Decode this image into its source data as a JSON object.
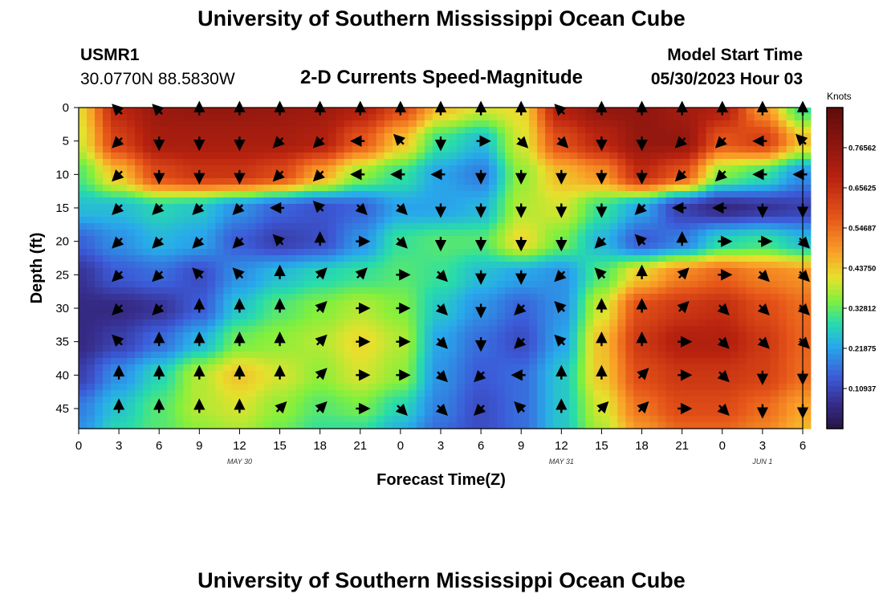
{
  "titles": {
    "top": "University of Southern Mississippi Ocean Cube",
    "bottom": "University of Southern Mississippi Ocean Cube"
  },
  "station": {
    "id": "USMR1",
    "coords": "30.0770N  88.5830W"
  },
  "model": {
    "label": "Model Start Time",
    "value": "05/30/2023 Hour 03"
  },
  "chart_data": {
    "type": "heatmap",
    "title": "2-D Currents Speed-Magnitude",
    "xlabel": "Forecast Time(Z)",
    "ylabel": "Depth (ft)",
    "x_ticks": [
      "0",
      "3",
      "6",
      "9",
      "12",
      "15",
      "18",
      "21",
      "0",
      "3",
      "6",
      "9",
      "12",
      "15",
      "18",
      "21",
      "0",
      "3",
      "6"
    ],
    "x_range_hours": [
      0,
      54
    ],
    "y_ticks": [
      "0",
      "5",
      "10",
      "15",
      "20",
      "25",
      "30",
      "35",
      "40",
      "45"
    ],
    "y_range_ft": [
      0,
      48
    ],
    "date_labels": [
      {
        "text": "MAY 30",
        "hour": 12
      },
      {
        "text": "MAY 31",
        "hour": 36
      },
      {
        "text": "JUN 1",
        "hour": 51
      }
    ],
    "colorbar": {
      "unit": "Knots",
      "range": [
        0,
        0.875
      ],
      "ticks": [
        "0.10937",
        "0.21875",
        "0.32812",
        "0.43750",
        "0.54687",
        "0.65625",
        "0.76562"
      ],
      "tick_values": [
        0.10937,
        0.21875,
        0.32812,
        0.4375,
        0.54687,
        0.65625,
        0.76562
      ]
    },
    "vector_hours": [
      3,
      6,
      9,
      12,
      15,
      18,
      21,
      24,
      27,
      30,
      33,
      36,
      39,
      42,
      45,
      48,
      51,
      54
    ],
    "vector_depths_ft": [
      0.5,
      5,
      10,
      15,
      20,
      25,
      30,
      35,
      40,
      45
    ],
    "speed_grid_depths_ft": [
      0,
      5,
      10,
      15,
      20,
      25,
      30,
      35,
      40,
      45,
      48
    ],
    "speed_grid": [
      [
        0.42,
        0.68,
        0.75,
        0.76,
        0.76,
        0.75,
        0.74,
        0.7,
        0.6,
        0.45,
        0.4,
        0.42,
        0.7,
        0.76,
        0.77,
        0.73,
        0.7,
        0.5,
        0.3
      ],
      [
        0.4,
        0.62,
        0.72,
        0.72,
        0.72,
        0.72,
        0.7,
        0.58,
        0.45,
        0.3,
        0.25,
        0.4,
        0.6,
        0.68,
        0.76,
        0.76,
        0.58,
        0.62,
        0.45
      ],
      [
        0.32,
        0.45,
        0.6,
        0.64,
        0.64,
        0.6,
        0.48,
        0.36,
        0.3,
        0.22,
        0.18,
        0.36,
        0.45,
        0.5,
        0.66,
        0.58,
        0.35,
        0.3,
        0.2
      ],
      [
        0.25,
        0.25,
        0.28,
        0.26,
        0.2,
        0.15,
        0.13,
        0.15,
        0.22,
        0.22,
        0.24,
        0.38,
        0.4,
        0.3,
        0.22,
        0.1,
        0.06,
        0.08,
        0.1
      ],
      [
        0.15,
        0.2,
        0.24,
        0.22,
        0.14,
        0.1,
        0.12,
        0.2,
        0.3,
        0.32,
        0.32,
        0.42,
        0.34,
        0.24,
        0.14,
        0.18,
        0.28,
        0.3,
        0.25
      ],
      [
        0.08,
        0.14,
        0.16,
        0.12,
        0.2,
        0.25,
        0.28,
        0.3,
        0.32,
        0.3,
        0.25,
        0.22,
        0.2,
        0.32,
        0.44,
        0.52,
        0.56,
        0.52,
        0.5
      ],
      [
        0.06,
        0.06,
        0.08,
        0.14,
        0.26,
        0.32,
        0.35,
        0.38,
        0.35,
        0.26,
        0.2,
        0.15,
        0.2,
        0.4,
        0.6,
        0.64,
        0.66,
        0.6,
        0.55
      ],
      [
        0.06,
        0.1,
        0.16,
        0.24,
        0.34,
        0.36,
        0.38,
        0.42,
        0.38,
        0.22,
        0.16,
        0.12,
        0.22,
        0.45,
        0.64,
        0.7,
        0.7,
        0.64,
        0.56
      ],
      [
        0.1,
        0.2,
        0.28,
        0.38,
        0.44,
        0.4,
        0.36,
        0.4,
        0.36,
        0.2,
        0.14,
        0.16,
        0.26,
        0.44,
        0.6,
        0.64,
        0.64,
        0.62,
        0.55
      ],
      [
        0.18,
        0.26,
        0.32,
        0.38,
        0.4,
        0.36,
        0.32,
        0.34,
        0.28,
        0.18,
        0.12,
        0.16,
        0.26,
        0.4,
        0.54,
        0.6,
        0.6,
        0.55,
        0.48
      ],
      [
        0.2,
        0.28,
        0.32,
        0.36,
        0.38,
        0.34,
        0.3,
        0.3,
        0.24,
        0.16,
        0.12,
        0.16,
        0.26,
        0.38,
        0.5,
        0.56,
        0.56,
        0.52,
        0.46
      ]
    ],
    "vector_dir_deg": [
      [
        315,
        315,
        0,
        0,
        0,
        0,
        0,
        0,
        0,
        0,
        0,
        315,
        0,
        0,
        0,
        0,
        0,
        0
      ],
      [
        225,
        180,
        180,
        180,
        225,
        225,
        270,
        315,
        180,
        90,
        135,
        135,
        180,
        180,
        225,
        225,
        270,
        315
      ],
      [
        225,
        180,
        180,
        180,
        225,
        225,
        270,
        270,
        270,
        180,
        180,
        180,
        180,
        180,
        225,
        225,
        270,
        270
      ],
      [
        225,
        225,
        225,
        225,
        270,
        315,
        135,
        135,
        180,
        180,
        180,
        180,
        180,
        225,
        270,
        270,
        180,
        180
      ],
      [
        225,
        225,
        225,
        225,
        315,
        0,
        90,
        135,
        180,
        180,
        180,
        180,
        225,
        315,
        0,
        90,
        90,
        135
      ],
      [
        225,
        225,
        315,
        315,
        0,
        45,
        45,
        90,
        135,
        180,
        180,
        225,
        315,
        0,
        45,
        90,
        135,
        135
      ],
      [
        225,
        225,
        0,
        0,
        0,
        45,
        90,
        90,
        135,
        180,
        225,
        315,
        0,
        0,
        45,
        135,
        135,
        135
      ],
      [
        315,
        0,
        0,
        0,
        0,
        45,
        90,
        90,
        135,
        180,
        225,
        315,
        0,
        0,
        90,
        135,
        135,
        135
      ],
      [
        0,
        0,
        0,
        0,
        0,
        45,
        90,
        90,
        135,
        225,
        270,
        0,
        0,
        45,
        90,
        135,
        180,
        180
      ],
      [
        0,
        0,
        0,
        0,
        45,
        45,
        90,
        135,
        135,
        225,
        315,
        0,
        45,
        45,
        90,
        135,
        180,
        180
      ]
    ]
  }
}
